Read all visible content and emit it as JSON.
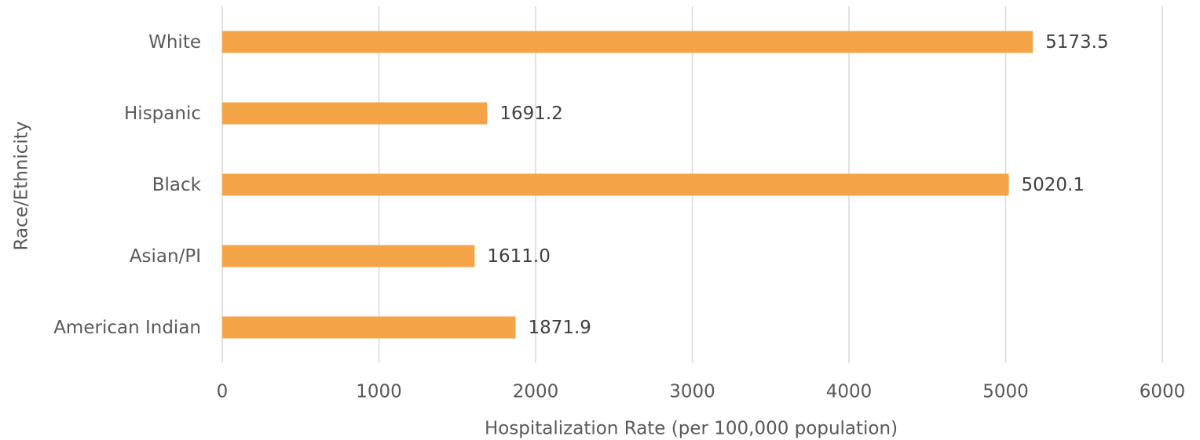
{
  "chart_data": {
    "type": "bar",
    "orientation": "horizontal",
    "categories": [
      "White",
      "Hispanic",
      "Black",
      "Asian/PI",
      "American Indian"
    ],
    "values": [
      5173.5,
      1691.2,
      5020.1,
      1611.0,
      1871.9
    ],
    "value_labels": [
      "5173.5",
      "1691.2",
      "5020.1",
      "1611.0",
      "1871.9"
    ],
    "color": "#f4a447",
    "xlabel": "Hospitalization Rate (per 100,000 population)",
    "ylabel": "Race/Ethnicity",
    "xlim": [
      0,
      6000
    ],
    "xticks": [
      0,
      1000,
      2000,
      3000,
      4000,
      5000,
      6000
    ],
    "grid": true
  }
}
